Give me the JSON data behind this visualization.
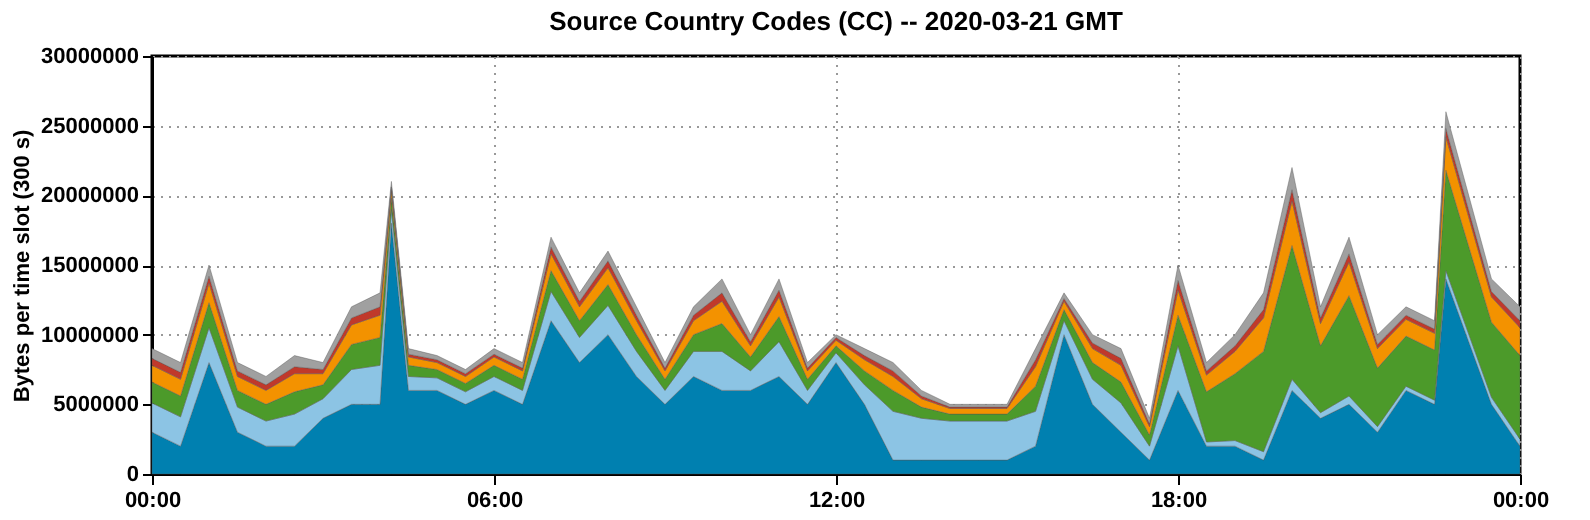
{
  "chart_data": {
    "type": "area",
    "stacked": true,
    "title": "Source Country Codes (CC) -- 2020-03-21 GMT",
    "ylabel": "Bytes per time slot (300 s)",
    "x": [
      0,
      0.5,
      1,
      1.5,
      2,
      2.5,
      3,
      3.5,
      4,
      4.2,
      4.5,
      5,
      5.5,
      6,
      6.5,
      7,
      7.5,
      8,
      8.5,
      9,
      9.5,
      10,
      10.5,
      11,
      11.5,
      12,
      12.5,
      13,
      13.5,
      14,
      14.5,
      15,
      15.5,
      16,
      16.5,
      17,
      17.5,
      18,
      18.5,
      19,
      19.5,
      20,
      20.5,
      21,
      21.5,
      22,
      22.5,
      22.7,
      23.5,
      24
    ],
    "xlim": [
      0,
      24
    ],
    "xticks": [
      {
        "value": 0,
        "label": "00:00"
      },
      {
        "value": 6,
        "label": "06:00"
      },
      {
        "value": 12,
        "label": "12:00"
      },
      {
        "value": 18,
        "label": "18:00"
      },
      {
        "value": 24,
        "label": "00:00"
      }
    ],
    "ylim": [
      0,
      30000000
    ],
    "yticks": [
      0,
      5000000,
      10000000,
      15000000,
      20000000,
      25000000,
      30000000
    ],
    "grid": true,
    "legend": false,
    "series": [
      {
        "color": "#0080b0",
        "values": [
          3000000.0,
          2000000.0,
          8000000.0,
          3000000.0,
          2000000.0,
          2000000.0,
          4000000.0,
          5000000.0,
          5000000.0,
          18000000.0,
          6000000.0,
          6000000.0,
          5000000.0,
          6000000.0,
          5000000.0,
          11000000.0,
          8000000.0,
          10000000.0,
          7000000.0,
          5000000.0,
          7000000.0,
          6000000.0,
          6000000.0,
          7000000.0,
          5000000.0,
          8000000.0,
          5000000.0,
          1000000.0,
          1000000.0,
          1000000.0,
          1000000.0,
          1000000.0,
          2000000.0,
          10000000.0,
          5000000.0,
          3000000.0,
          1000000.0,
          6000000.0,
          2000000.0,
          2000000.0,
          1000000.0,
          6000000.0,
          4000000.0,
          5000000.0,
          3000000.0,
          6000000.0,
          5000000.0,
          14000000.0,
          5000000.0,
          2000000.0
        ]
      },
      {
        "color": "#8cc4e4",
        "values": [
          2100000.0,
          2100000.0,
          2500000.0,
          1800000.0,
          1800000.0,
          2300000.0,
          1400000.0,
          2500000.0,
          2800000.0,
          1000000.0,
          1000000.0,
          900000.0,
          900000.0,
          1000000.0,
          1000000.0,
          2100000.0,
          1800000.0,
          2100000.0,
          1800000.0,
          1000000.0,
          1800000.0,
          2800000.0,
          1400000.0,
          2500000.0,
          1000000.0,
          700000.0,
          1400000.0,
          3500000.0,
          3000000.0,
          2800000.0,
          2800000.0,
          2800000.0,
          2500000.0,
          1000000.0,
          1800000.0,
          2100000.0,
          1000000.0,
          3200000.0,
          300000.0,
          400000.0,
          600000.0,
          800000.0,
          400000.0,
          600000.0,
          400000.0,
          300000.0,
          300000.0,
          600000.0,
          500000.0,
          500000.0
        ]
      },
      {
        "color": "#4c9a2a",
        "values": [
          1500000.0,
          1500000.0,
          1800000.0,
          1200000.0,
          1200000.0,
          1600000.0,
          1000000.0,
          1800000.0,
          2000000.0,
          800000.0,
          800000.0,
          600000.0,
          600000.0,
          800000.0,
          800000.0,
          1500000.0,
          1200000.0,
          1500000.0,
          1200000.0,
          800000.0,
          1200000.0,
          2000000.0,
          1000000.0,
          1800000.0,
          800000.0,
          500000.0,
          1000000.0,
          1500000.0,
          800000.0,
          500000.0,
          500000.0,
          500000.0,
          1800000.0,
          800000.0,
          1200000.0,
          1500000.0,
          800000.0,
          2200000.0,
          3600000.0,
          4800000.0,
          7200000.0,
          9600000.0,
          4800000.0,
          7200000.0,
          4200000.0,
          3600000.0,
          3600000.0,
          7200000.0,
          5400000.0,
          6000000.0
        ]
      },
      {
        "color": "#f39200",
        "values": [
          1200000.0,
          1200000.0,
          1400000.0,
          1000000.0,
          1000000.0,
          1300000.0,
          800000.0,
          1400000.0,
          1600000.0,
          600000.0,
          600000.0,
          500000.0,
          500000.0,
          600000.0,
          600000.0,
          1200000.0,
          1000000.0,
          1200000.0,
          1000000.0,
          600000.0,
          1000000.0,
          1600000.0,
          800000.0,
          1400000.0,
          600000.0,
          400000.0,
          800000.0,
          1000000.0,
          600000.0,
          400000.0,
          400000.0,
          400000.0,
          1400000.0,
          600000.0,
          1000000.0,
          1200000.0,
          600000.0,
          1800000.0,
          1200000.0,
          1600000.0,
          2400000.0,
          3200000.0,
          1600000.0,
          2400000.0,
          1400000.0,
          1200000.0,
          1200000.0,
          2400000.0,
          1800000.0,
          2000000.0
        ]
      },
      {
        "color": "#c0392b",
        "values": [
          500000.0,
          500000.0,
          500000.0,
          400000.0,
          400000.0,
          500000.0,
          300000.0,
          500000.0,
          600000.0,
          200000.0,
          200000.0,
          200000.0,
          200000.0,
          200000.0,
          200000.0,
          500000.0,
          400000.0,
          500000.0,
          400000.0,
          200000.0,
          400000.0,
          600000.0,
          300000.0,
          500000.0,
          200000.0,
          200000.0,
          300000.0,
          400000.0,
          200000.0,
          100000.0,
          100000.0,
          100000.0,
          500000.0,
          200000.0,
          400000.0,
          500000.0,
          200000.0,
          700000.0,
          300000.0,
          400000.0,
          600000.0,
          800000.0,
          400000.0,
          600000.0,
          300000.0,
          300000.0,
          300000.0,
          600000.0,
          400000.0,
          500000.0
        ]
      },
      {
        "color": "#a0a0a0",
        "values": [
          700000.0,
          700000.0,
          800000.0,
          600000.0,
          600000.0,
          800000.0,
          500000.0,
          800000.0,
          1000000.0,
          400000.0,
          400000.0,
          300000.0,
          300000.0,
          400000.0,
          400000.0,
          700000.0,
          600000.0,
          700000.0,
          600000.0,
          400000.0,
          600000.0,
          1000000.0,
          500000.0,
          800000.0,
          400000.0,
          200000.0,
          500000.0,
          600000.0,
          400000.0,
          200000.0,
          200000.0,
          200000.0,
          800000.0,
          400000.0,
          600000.0,
          700000.0,
          400000.0,
          1100000.0,
          600000.0,
          800000.0,
          1200000.0,
          1600000.0,
          800000.0,
          1200000.0,
          700000.0,
          600000.0,
          600000.0,
          1200000.0,
          900000.0,
          1000000.0
        ]
      }
    ]
  }
}
